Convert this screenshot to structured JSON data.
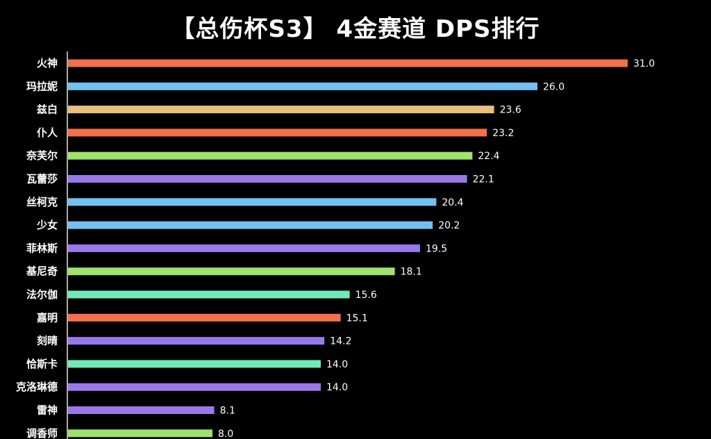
{
  "title": "【总伤杯S3】 4金赛道 DPS排行",
  "colors": {
    "background": "#000000",
    "axis": "#e6e6e6",
    "text": "#ffffff"
  },
  "chart_data": {
    "type": "bar",
    "orientation": "horizontal",
    "title": "【总伤杯S3】 4金赛道 DPS排行",
    "xlabel": "",
    "ylabel": "",
    "xlim": [
      0,
      31.6
    ],
    "grid": false,
    "legend": "none",
    "data_labels": true,
    "categories": [
      "火神",
      "玛拉妮",
      "兹白",
      "仆人",
      "奈芙尔",
      "瓦蕾莎",
      "丝柯克",
      "少女",
      "菲林斯",
      "基尼奇",
      "法尔伽",
      "嘉明",
      "刻晴",
      "恰斯卡",
      "克洛琳德",
      "雷神",
      "调香师"
    ],
    "values": [
      31.0,
      26.0,
      23.6,
      23.2,
      22.4,
      22.1,
      20.4,
      20.2,
      19.5,
      18.1,
      15.6,
      15.1,
      14.2,
      14.0,
      14.0,
      8.1,
      8.0
    ],
    "value_labels": [
      "31.0",
      "26.0",
      "23.6",
      "23.2",
      "22.4",
      "22.1",
      "20.4",
      "20.2",
      "19.5",
      "18.1",
      "15.6",
      "15.1",
      "14.2",
      "14.0",
      "14.0",
      "8.1",
      "8.0"
    ],
    "bar_colors": [
      "#f5704a",
      "#74c0f0",
      "#e8c07a",
      "#f5704a",
      "#9ee36a",
      "#9b78ea",
      "#74c0f0",
      "#74c0f0",
      "#9b78ea",
      "#9ee36a",
      "#72eab8",
      "#f5704a",
      "#9b78ea",
      "#72eab8",
      "#9b78ea",
      "#9b78ea",
      "#9ee36a"
    ]
  }
}
